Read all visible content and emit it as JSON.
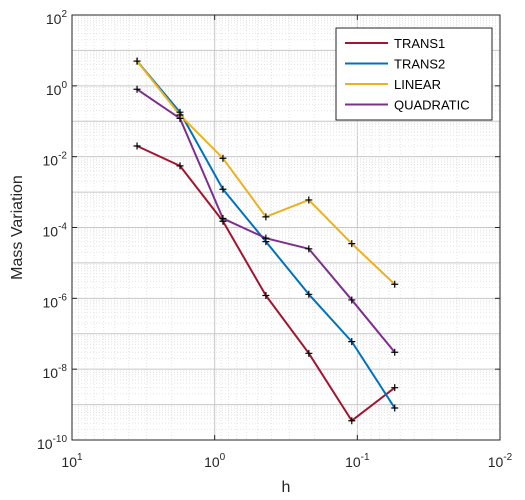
{
  "chart_data": {
    "type": "line",
    "xlabel": "h",
    "ylabel": "Mass Variation",
    "xscale": "log",
    "yscale": "log",
    "x_direction": "reversed",
    "xlim": [
      10,
      0.01
    ],
    "ylim": [
      1e-10,
      100
    ],
    "grid": "major-and-minor",
    "legend_position": "top-right",
    "x_ticks": [
      {
        "base": "10",
        "exp": "1"
      },
      {
        "base": "10",
        "exp": "0"
      },
      {
        "base": "10",
        "exp": "-1"
      },
      {
        "base": "10",
        "exp": "-2"
      }
    ],
    "y_ticks": [
      {
        "base": "10",
        "exp": "-10"
      },
      {
        "base": "10",
        "exp": "-8"
      },
      {
        "base": "10",
        "exp": "-6"
      },
      {
        "base": "10",
        "exp": "-4"
      },
      {
        "base": "10",
        "exp": "-2"
      },
      {
        "base": "10",
        "exp": "0"
      },
      {
        "base": "10",
        "exp": "2"
      }
    ],
    "x": [
      3.5,
      1.75,
      0.875,
      0.4375,
      0.21875,
      0.109375,
      0.0546875
    ],
    "series": [
      {
        "name": "TRANS1",
        "color": "#A2142F",
        "values": [
          0.02,
          0.0055,
          0.00015,
          1.2e-06,
          2.8e-08,
          3.5e-10,
          3e-09
        ]
      },
      {
        "name": "TRANS2",
        "color": "#0072BD",
        "values": [
          5,
          0.18,
          0.0012,
          4e-05,
          1.3e-06,
          6e-08,
          8e-10
        ]
      },
      {
        "name": "LINEAR",
        "color": "#EDB120",
        "values": [
          5,
          0.15,
          0.009,
          0.0002,
          0.0006,
          3.5e-05,
          2.5e-06
        ]
      },
      {
        "name": "QUADRATIC",
        "color": "#7E2F8E",
        "values": [
          0.8,
          0.12,
          0.00018,
          5e-05,
          2.5e-05,
          9e-07,
          3e-08
        ]
      }
    ]
  }
}
